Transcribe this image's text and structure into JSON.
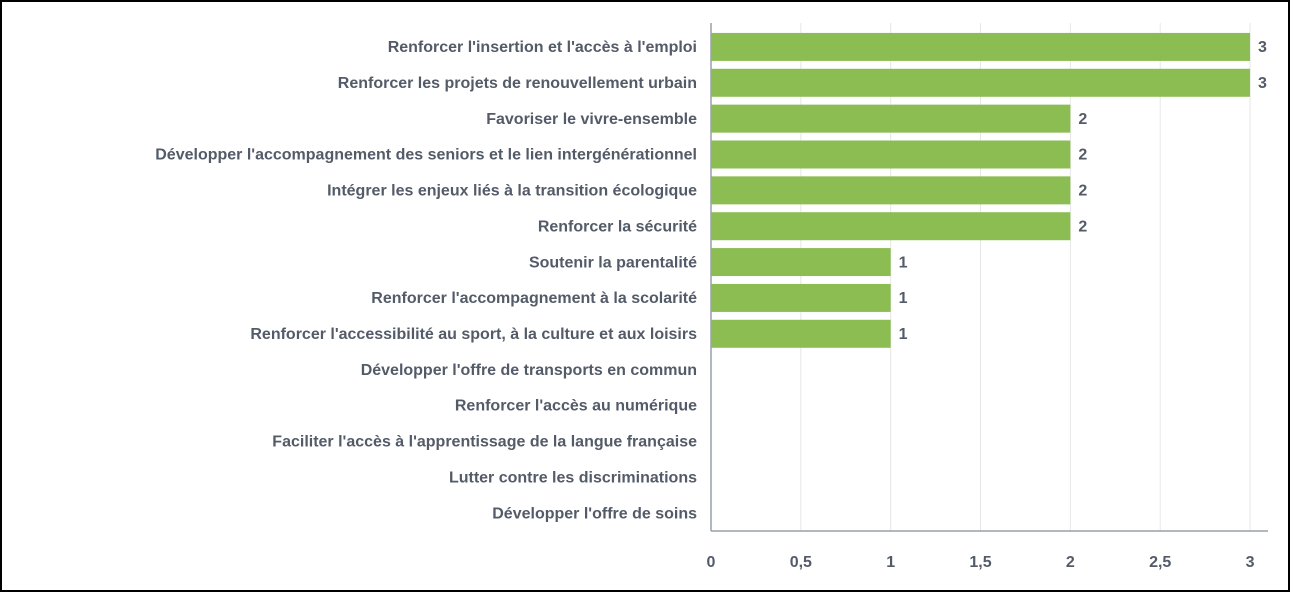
{
  "chart_data": {
    "type": "barh",
    "categories": [
      "Renforcer l'insertion et l'accès à l'emploi",
      "Renforcer les projets de renouvellement urbain",
      "Favoriser le vivre-ensemble",
      "Développer l'accompagnement des seniors et le lien intergénérationnel",
      "Intégrer les enjeux liés à la transition écologique",
      "Renforcer la sécurité",
      "Soutenir la parentalité",
      "Renforcer l'accompagnement à la scolarité",
      "Renforcer l'accessibilité au sport, à la culture et aux loisirs",
      "Développer l'offre de transports en commun",
      "Renforcer l'accès au numérique",
      "Faciliter l'accès à l'apprentissage de la langue française",
      "Lutter contre les discriminations",
      "Développer l'offre de soins"
    ],
    "values": [
      3,
      3,
      2,
      2,
      2,
      2,
      1,
      1,
      1,
      0,
      0,
      0,
      0,
      0
    ],
    "color": "#8bbd52",
    "xlim": [
      0,
      3.1
    ],
    "xticks": [
      0,
      {
        "value": 0.5,
        "label": "0,5"
      },
      1,
      {
        "value": 1.5,
        "label": "1,5"
      },
      2,
      {
        "value": 2.5,
        "label": "2,5"
      },
      3
    ],
    "grid": true
  }
}
